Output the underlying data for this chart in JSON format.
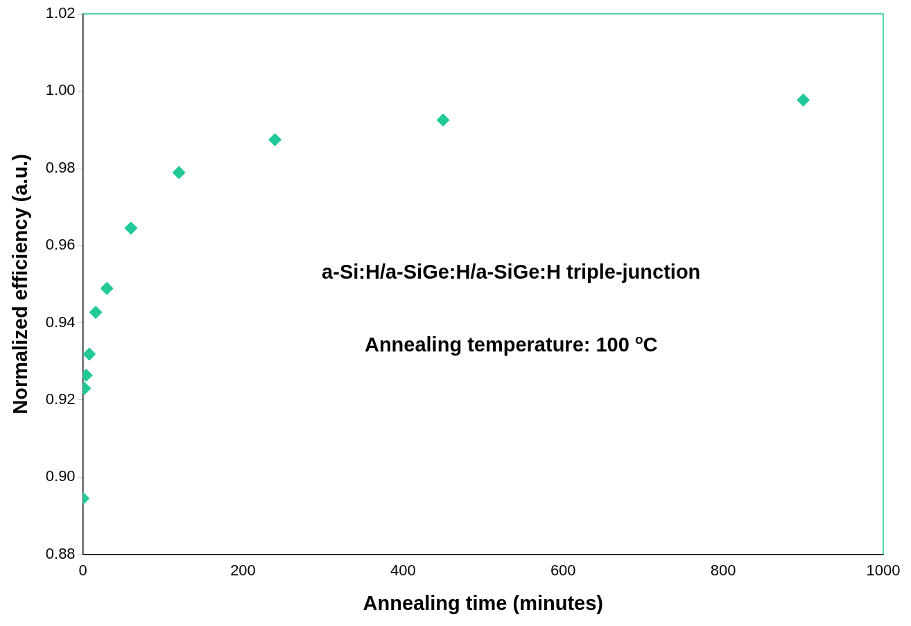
{
  "chart_data": {
    "type": "scatter",
    "xlabel": "Annealing time (minutes)",
    "ylabel": "Normalized efficiency (a.u.)",
    "annotations": [
      "a-Si:H/a-SiGe:H/a-SiGe:H triple-junction",
      "Annealing temperature: 100 $^{o}$C"
    ],
    "x": [
      0,
      2,
      4,
      8,
      16,
      30,
      60,
      120,
      240,
      450,
      900
    ],
    "series": [
      {
        "color": "#20c997",
        "values": [
          0.8945,
          0.923,
          0.9264,
          0.9319,
          0.9427,
          0.9489,
          0.9645,
          0.9789,
          0.9874,
          0.9925,
          0.9977
        ]
      }
    ],
    "marker": "diamond",
    "grid": false,
    "legend": false,
    "xlim": [
      0,
      1000
    ],
    "xticks": [
      0,
      200,
      400,
      600,
      800,
      1000
    ],
    "ylim": [
      0.88,
      1.02
    ],
    "yticks": [
      0.88,
      {
        "value": 0.9,
        "label": "0.90"
      },
      0.92,
      0.94,
      0.96,
      0.98,
      {
        "value": 1,
        "label": "1.00"
      },
      1.02
    ]
  }
}
